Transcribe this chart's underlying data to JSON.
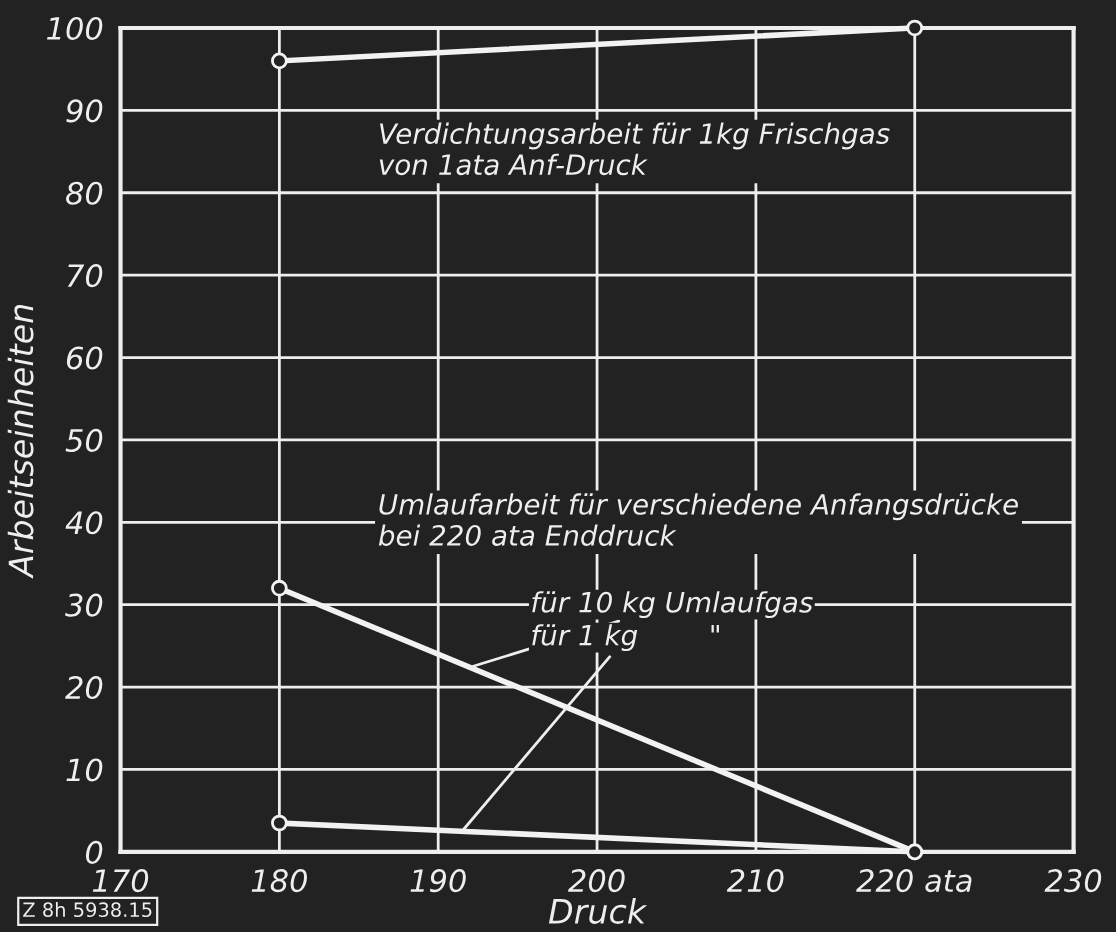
{
  "chart_data": {
    "type": "line",
    "xlabel": "Druck",
    "ylabel": "Arbeitseinheiten",
    "x": [
      180,
      220
    ],
    "series": [
      {
        "color": "#f2f2f2",
        "values": [
          96,
          100
        ]
      },
      {
        "color": "#f2f2f2",
        "values": [
          32,
          0
        ]
      },
      {
        "color": "#f2f2f2",
        "values": [
          3.5,
          0
        ]
      }
    ],
    "xlim": [
      170,
      230
    ],
    "xticks": [
      170,
      180,
      190,
      200,
      210,
      {
        "value": 220,
        "label": "220 ata"
      },
      230
    ],
    "ylim": [
      0,
      100
    ],
    "yticks": [
      0,
      10,
      20,
      30,
      40,
      50,
      60,
      70,
      80,
      90,
      100
    ],
    "grid": true,
    "marker": "circle",
    "line_style": "solid",
    "annotations": [
      "Verdichtungsarbeit für 1kg Frischgas\nvon 1ata Anf-Druck",
      "Umlaufarbeit für verschiedene Anfangsdrücke\nbei 220 ata Enddruck",
      {
        "text": "für 10 kg Umlaufgas",
        "x": 192,
        "y": 22.4
      },
      {
        "text": "für 1 kg        \"",
        "x": 191.5,
        "y": 2.5
      },
      "Z 8h 5938.15"
    ]
  }
}
